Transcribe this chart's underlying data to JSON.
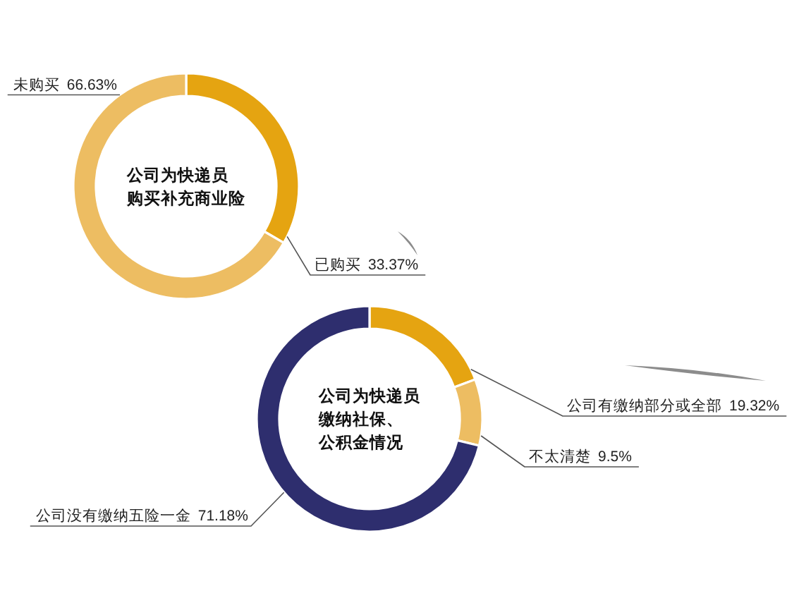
{
  "chart_data": [
    {
      "type": "donut",
      "title": "公司为快递员购买补充商业险",
      "categories": [
        "已购买",
        "未购买"
      ],
      "values": [
        33.37,
        66.63
      ],
      "value_labels": [
        "33.37%",
        "66.63%"
      ],
      "colors": [
        "#e5a411",
        "#edbd62"
      ]
    },
    {
      "type": "donut",
      "title": "公司为快递员缴纳社保、公积金情况",
      "categories": [
        "公司有缴纳部分或全部",
        "不太清楚",
        "公司没有缴纳五险一金"
      ],
      "values": [
        19.32,
        9.5,
        71.18
      ],
      "value_labels": [
        "19.32%",
        "9.5%",
        "71.18%"
      ],
      "colors": [
        "#e5a411",
        "#edbd62",
        "#2e2e6e"
      ]
    }
  ]
}
